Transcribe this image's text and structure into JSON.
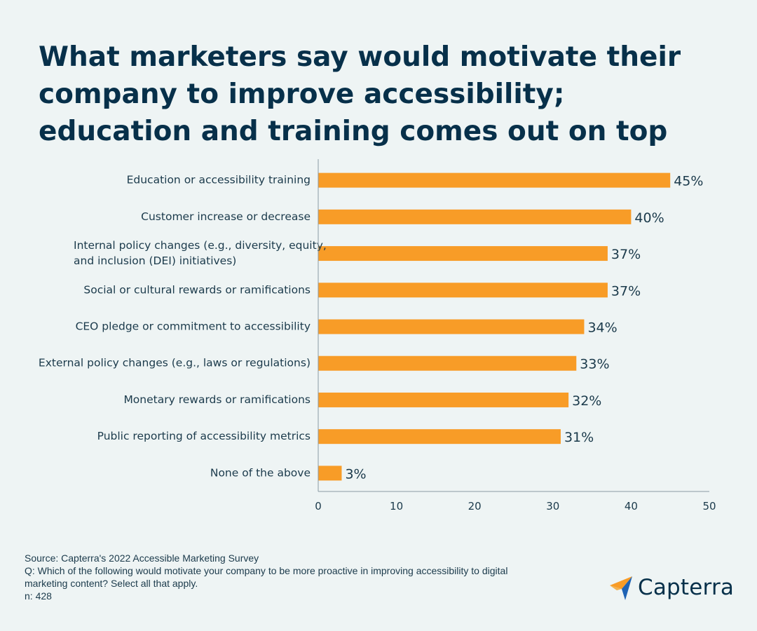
{
  "title_lines": [
    "What marketers say would motivate their",
    "company to improve accessibility;",
    "education and training comes out on top"
  ],
  "colors": {
    "bar": "#f89c27",
    "text": "#1b3a4b",
    "title": "#07304a",
    "axis": "#8a9aa3",
    "background": "#eef4f4",
    "logo_blue": "#1e63b5",
    "logo_orange": "#f89c27"
  },
  "chart_data": {
    "type": "bar",
    "orientation": "horizontal",
    "categories": [
      [
        "Education or accessibility training"
      ],
      [
        "Customer increase or decrease"
      ],
      [
        "Internal policy changes (e.g., diversity, equity,",
        "and inclusion (DEI) initiatives)"
      ],
      [
        "Social or cultural rewards or ramifications"
      ],
      [
        "CEO pledge or commitment to accessibility"
      ],
      [
        "External policy changes (e.g., laws or regulations)"
      ],
      [
        "Monetary rewards or ramifications"
      ],
      [
        "Public reporting of accessibility metrics"
      ],
      [
        "None of the above"
      ]
    ],
    "values": [
      45,
      40,
      37,
      37,
      34,
      33,
      32,
      31,
      3
    ],
    "value_labels": [
      "45%",
      "40%",
      "37%",
      "37%",
      "34%",
      "33%",
      "32%",
      "31%",
      "3%"
    ],
    "xlim": [
      0,
      50
    ],
    "xticks": [
      0,
      10,
      20,
      30,
      40,
      50
    ],
    "grid": false
  },
  "footer": {
    "source": "Source: Capterra's 2022 Accessible Marketing Survey",
    "question_line1": "Q: Which of the following would motivate your company to be more proactive in improving accessibility to digital",
    "question_line2": "marketing content? Select all that apply.",
    "n": "n: 428"
  },
  "logo": {
    "text": "Capterra",
    "icon": "capterra-arrow-icon"
  }
}
